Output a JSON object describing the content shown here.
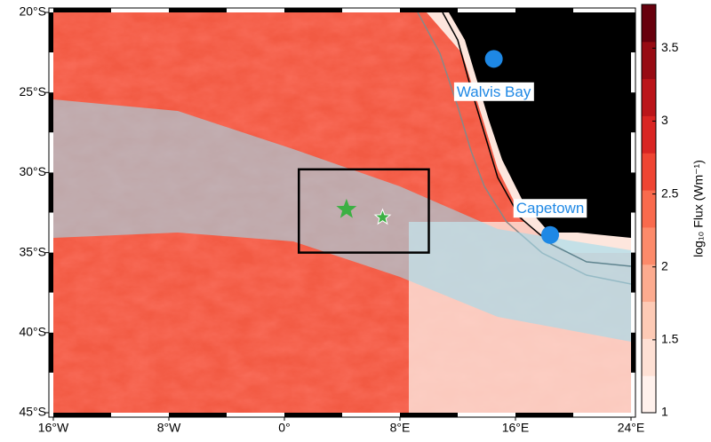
{
  "chart_data": {
    "type": "map",
    "xlim": [
      -16,
      24
    ],
    "ylim": [
      -45,
      -20
    ],
    "xticks": [
      {
        "value": -16,
        "label": "16°W"
      },
      {
        "value": -8,
        "label": "8°W"
      },
      {
        "value": 0,
        "label": "0°"
      },
      {
        "value": 8,
        "label": "8°E"
      },
      {
        "value": 16,
        "label": "16°E"
      },
      {
        "value": 24,
        "label": "24°E"
      }
    ],
    "yticks": [
      {
        "value": -20,
        "label": "20°S"
      },
      {
        "value": -25,
        "label": "25°S"
      },
      {
        "value": -30,
        "label": "30°S"
      },
      {
        "value": -35,
        "label": "35°S"
      },
      {
        "value": -40,
        "label": "40°S"
      },
      {
        "value": -45,
        "label": "45°S"
      }
    ],
    "colorbar": {
      "label": "log₁₀ Flux (Wm⁻¹)",
      "clim": [
        1,
        3.8
      ],
      "ticks": [
        1,
        1.5,
        2,
        2.5,
        3,
        3.5
      ],
      "colors": [
        "#fff1ec",
        "#fee0d4",
        "#fdcab5",
        "#fcab8f",
        "#fc8a6a",
        "#f96a4d",
        "#ef4533",
        "#d92523",
        "#bb151a",
        "#970b13",
        "#67000d"
      ]
    },
    "cities": [
      {
        "name": "Walvis Bay",
        "lon": 14.5,
        "lat": -22.9,
        "color": "#1e88e5"
      },
      {
        "name": "Capetown",
        "lon": 18.4,
        "lat": -33.9,
        "color": "#1e88e5"
      }
    ],
    "stars": [
      {
        "lon": 4.3,
        "lat": -32.3,
        "color": "#3cb043"
      },
      {
        "lon": 6.8,
        "lat": -32.8,
        "color": "#3cb043"
      }
    ],
    "box": {
      "lon": [
        1,
        10
      ],
      "lat": [
        -35,
        -29.8
      ]
    }
  }
}
